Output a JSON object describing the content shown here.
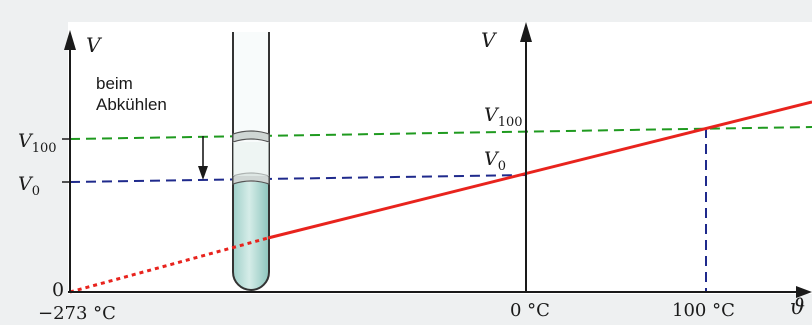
{
  "left_axis": {
    "v_label": "V",
    "v100_main": "V",
    "v100_sub": "100",
    "v0_main": "V",
    "v0_sub": "0",
    "zero_label": "0",
    "abs_zero_label": "−273 °C"
  },
  "caption": {
    "line1": "beim",
    "line2": "Abkühlen"
  },
  "right_axis": {
    "v_label": "V",
    "v100_main": "V",
    "v100_sub": "100",
    "v0_main": "V",
    "v0_sub": "0"
  },
  "x_axis": {
    "tick_0": "0 °C",
    "tick_100": "100 °C",
    "symbol": "ϑ"
  },
  "colors": {
    "background": "#eef0f1",
    "plot_area": "#ffffff",
    "axis": "#1a1a1a",
    "line": "#e8231d",
    "v100_dash": "#1f9a1f",
    "v0_dash": "#1f2a8c",
    "tube_liquid": "#b5dcd6",
    "tube_outline": "#333333"
  }
}
